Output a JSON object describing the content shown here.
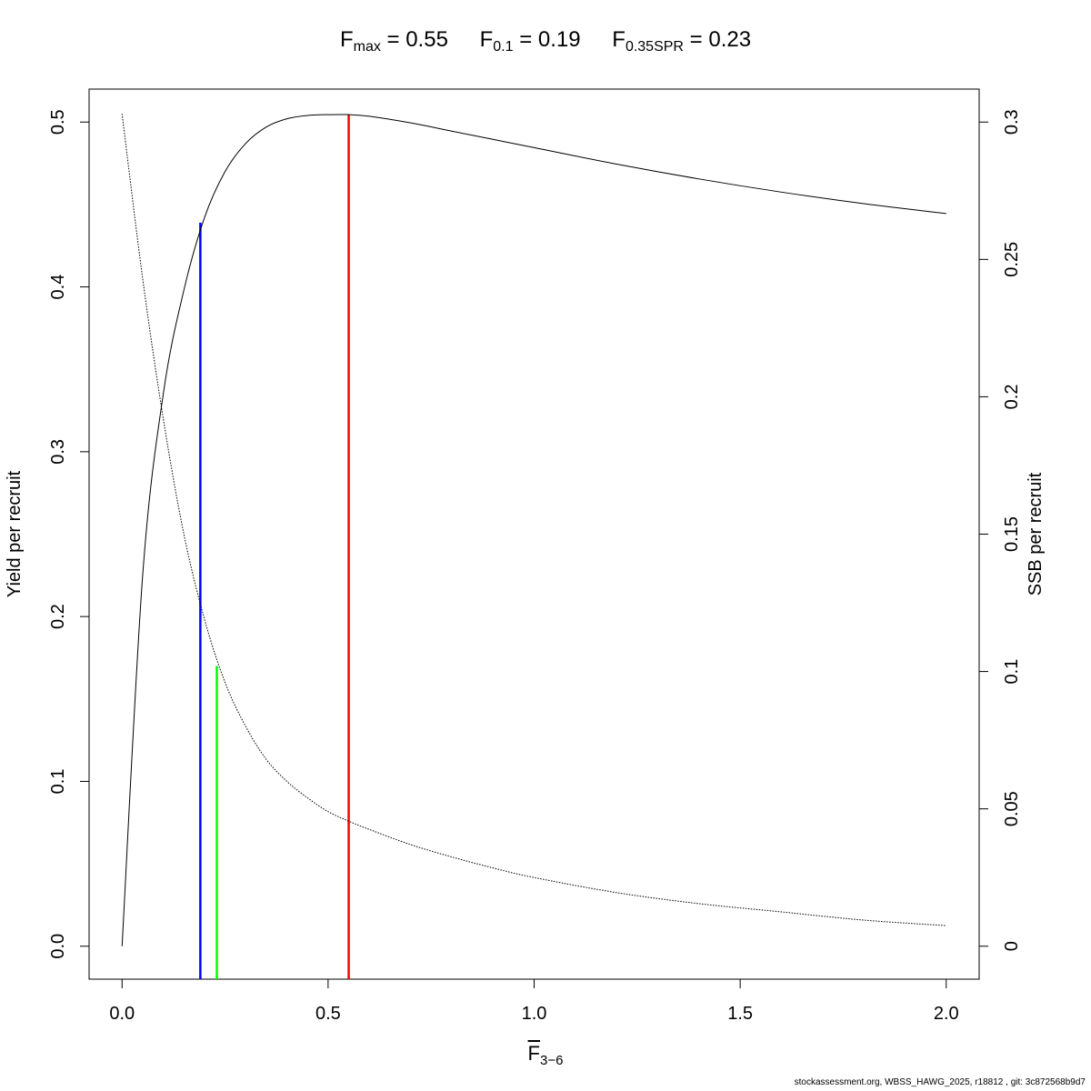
{
  "title": {
    "terms": [
      {
        "symbol": "F",
        "sub": "max",
        "value": "= 0.55"
      },
      {
        "symbol": "F",
        "sub": "0.1",
        "value": "= 0.19"
      },
      {
        "symbol": "F",
        "sub": "0.35SPR",
        "value": "= 0.23"
      }
    ]
  },
  "footer": "stockassessment.org, WBSS_HAWG_2025, r18812 , git: 3c872568b9d7",
  "chart_data": {
    "type": "line",
    "xlabel": {
      "symbol": "F",
      "sub": "3−6"
    },
    "ylabel": "Yield per recruit",
    "y2label": "SSB per recruit",
    "xlim": [
      -0.08,
      2.08
    ],
    "ylim": [
      -0.02,
      0.52
    ],
    "y2lim": [
      -0.012,
      0.312
    ],
    "xticks": [
      "0.0",
      "0.5",
      "1.0",
      "1.5",
      "2.0"
    ],
    "yticks": [
      "0.0",
      "0.1",
      "0.2",
      "0.3",
      "0.4",
      "0.5"
    ],
    "y2ticks": [
      "0",
      "0.05",
      "0.1",
      "0.15",
      "0.2",
      "0.25",
      "0.3"
    ],
    "grid": false,
    "legend": "none",
    "series": [
      {
        "line_style": "solid",
        "axis": "left",
        "color": "#000000",
        "x": [
          0,
          0.05,
          0.1,
          0.15,
          0.2,
          0.25,
          0.3,
          0.35,
          0.4,
          0.45,
          0.5,
          0.55,
          0.6,
          0.7,
          0.8,
          0.9,
          1.0,
          1.2,
          1.4,
          1.6,
          1.8,
          2.0
        ],
        "y": [
          0,
          0.225,
          0.335,
          0.398,
          0.442,
          0.47,
          0.487,
          0.497,
          0.502,
          0.504,
          0.5045,
          0.5045,
          0.5035,
          0.4995,
          0.4945,
          0.4895,
          0.4845,
          0.4745,
          0.4655,
          0.4575,
          0.4505,
          0.4445
        ]
      },
      {
        "line_style": "dotted",
        "axis": "right",
        "color": "#000000",
        "x": [
          0,
          0.05,
          0.1,
          0.15,
          0.2,
          0.25,
          0.3,
          0.35,
          0.4,
          0.45,
          0.5,
          0.55,
          0.6,
          0.7,
          0.8,
          0.9,
          1.0,
          1.2,
          1.4,
          1.6,
          1.8,
          2.0
        ],
        "y": [
          0.303,
          0.243,
          0.192,
          0.15,
          0.119,
          0.096,
          0.08,
          0.068,
          0.06,
          0.054,
          0.049,
          0.0455,
          0.0425,
          0.037,
          0.0325,
          0.0285,
          0.025,
          0.0195,
          0.0155,
          0.0125,
          0.0095,
          0.0075
        ]
      }
    ],
    "reference_lines": [
      {
        "x": 0.19,
        "y_top": 0.439,
        "color": "#0000ff"
      },
      {
        "x": 0.23,
        "y_top": 0.17,
        "color": "#00ff00"
      },
      {
        "x": 0.55,
        "y_top": 0.5045,
        "color": "#ff0000"
      }
    ]
  }
}
